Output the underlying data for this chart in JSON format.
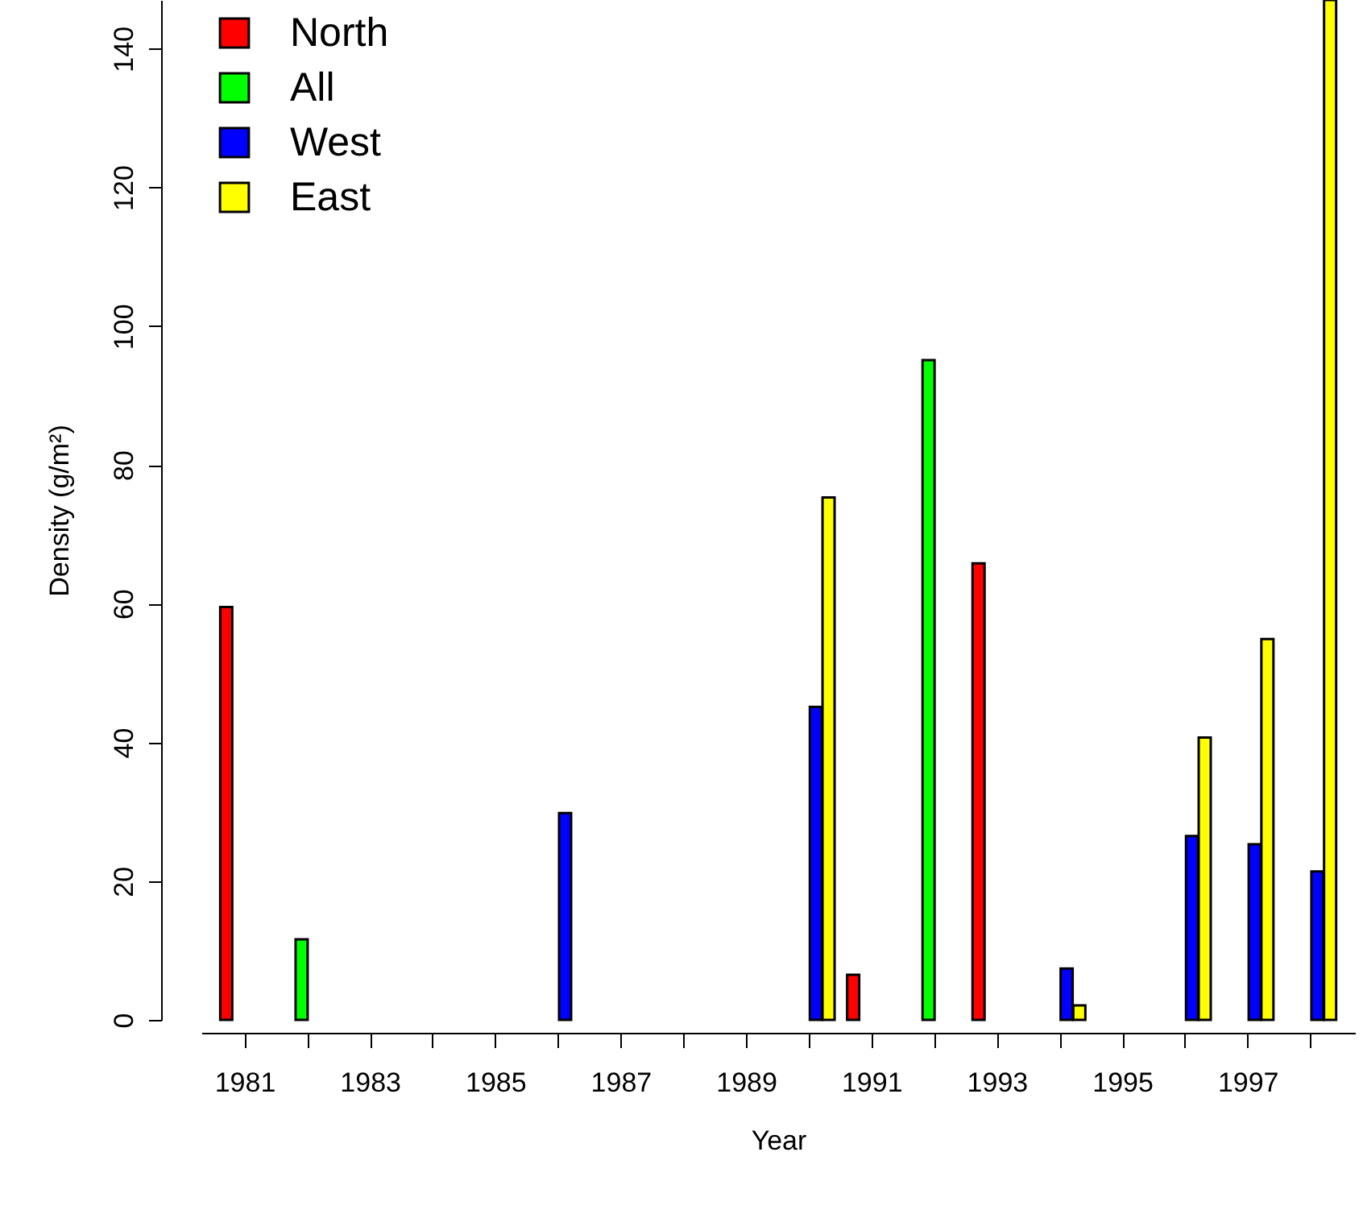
{
  "chart_data": {
    "type": "bar",
    "xlabel": "Year",
    "ylabel": "Density (g/m²)",
    "categories": [
      "1981",
      null,
      "1983",
      null,
      "1985",
      null,
      "1987",
      null,
      "1989",
      null,
      "1991",
      null,
      "1993",
      null,
      "1995",
      null,
      "1997",
      null
    ],
    "series": [
      {
        "name": "North",
        "color": "#ff0000",
        "values": [
          59.5,
          null,
          null,
          null,
          null,
          null,
          null,
          null,
          null,
          null,
          6.5,
          null,
          65.8,
          null,
          null,
          null,
          null,
          null
        ]
      },
      {
        "name": "All",
        "color": "#00ff00",
        "values": [
          null,
          11.6,
          null,
          null,
          null,
          null,
          null,
          null,
          null,
          null,
          null,
          95.1,
          null,
          null,
          null,
          null,
          null,
          null
        ]
      },
      {
        "name": "West",
        "color": "#0000ff",
        "values": [
          null,
          null,
          null,
          null,
          null,
          29.8,
          null,
          null,
          null,
          45.1,
          null,
          null,
          null,
          7.4,
          null,
          26.5,
          25.3,
          21.4
        ]
      },
      {
        "name": "East",
        "color": "#ffff00",
        "values": [
          null,
          null,
          null,
          null,
          null,
          null,
          null,
          null,
          null,
          75.3,
          null,
          null,
          null,
          2.1,
          null,
          40.7,
          54.9,
          147
        ]
      }
    ],
    "ylim": [
      0,
      147
    ],
    "yticks": [
      0,
      20,
      40,
      60,
      80,
      100,
      120,
      140
    ],
    "legend": "top left"
  }
}
